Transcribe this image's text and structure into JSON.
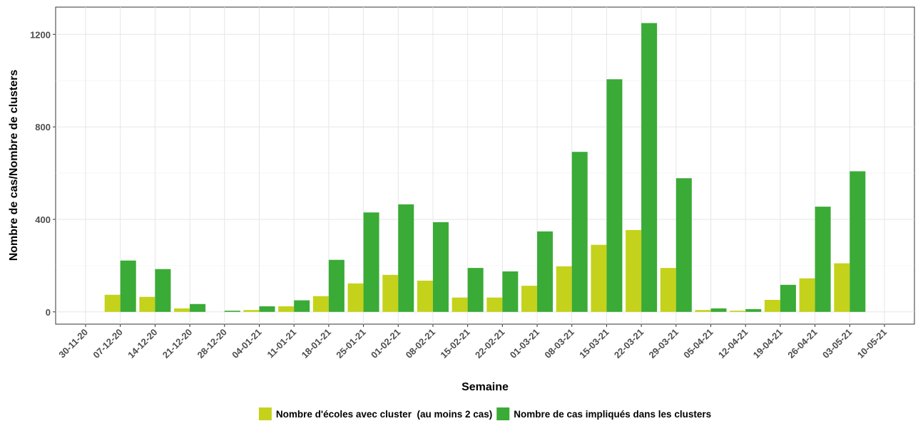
{
  "chart_data": {
    "type": "bar",
    "x_label": "Semaine",
    "y_label": "Nombre de cas/Nombre de clusters",
    "categories": [
      "30-11-20",
      "07-12-20",
      "14-12-20",
      "21-12-20",
      "28-12-20",
      "04-01-21",
      "11-01-21",
      "18-01-21",
      "25-01-21",
      "01-02-21",
      "08-02-21",
      "15-02-21",
      "22-02-21",
      "01-03-21",
      "08-03-21",
      "15-03-21",
      "22-03-21",
      "29-03-21",
      "05-04-21",
      "12-04-21",
      "19-04-21",
      "26-04-21",
      "03-05-21",
      "10-05-21"
    ],
    "series": [
      {
        "name": "Nombre d'écoles avec cluster  (au moins 2 cas)",
        "color": "#c4d21b",
        "values": [
          0,
          74,
          65,
          15,
          0,
          8,
          24,
          68,
          123,
          160,
          135,
          62,
          62,
          113,
          197,
          290,
          354,
          190,
          8,
          5,
          52,
          145,
          210,
          0
        ]
      },
      {
        "name": "Nombre de cas impliqués dans les clusters",
        "color": "#3aab36",
        "values": [
          0,
          222,
          185,
          34,
          5,
          24,
          50,
          225,
          430,
          465,
          388,
          190,
          175,
          348,
          692,
          1006,
          1249,
          578,
          15,
          12,
          117,
          455,
          608,
          0
        ]
      }
    ],
    "ylim": [
      -53,
      1318
    ],
    "yticks": [
      0,
      400,
      800,
      1200
    ],
    "grid": true,
    "legend": "bottom"
  }
}
